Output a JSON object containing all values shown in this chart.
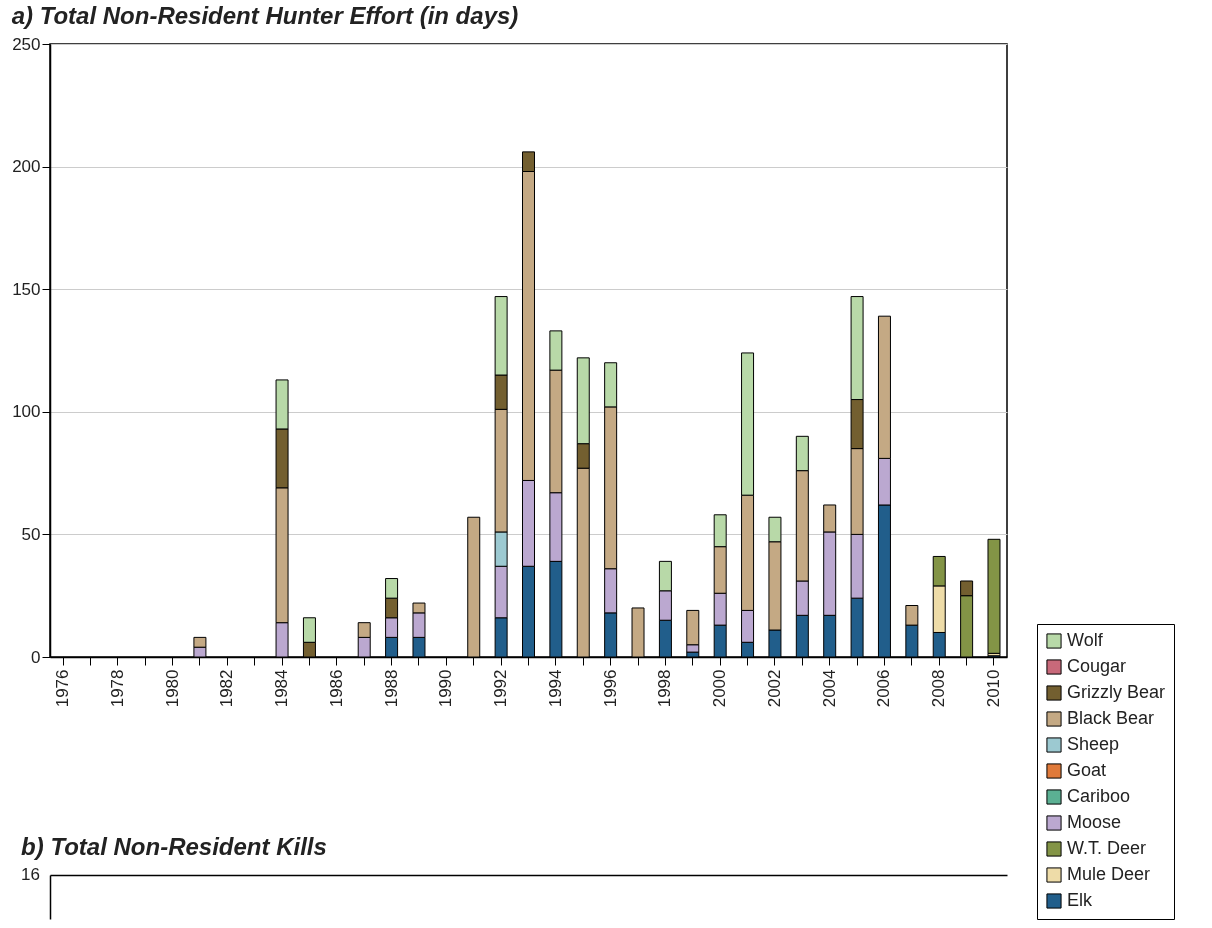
{
  "chart_data": [
    {
      "type": "bar",
      "title": "a) Total Non-Resident Hunter Effort (in days)",
      "stacked": true,
      "categories": [
        "1976",
        null,
        "1978",
        null,
        "1980",
        null,
        "1982",
        null,
        "1984",
        null,
        "1986",
        null,
        "1988",
        null,
        "1990",
        null,
        "1992",
        null,
        "1994",
        null,
        "1996",
        null,
        "1998",
        null,
        "2000",
        null,
        "2002",
        null,
        "2004",
        null,
        "2006",
        null,
        "2008",
        null,
        "2010"
      ],
      "series": [
        {
          "name": "Elk",
          "color": "#215e8b",
          "values": [
            null,
            null,
            null,
            null,
            null,
            null,
            null,
            null,
            null,
            null,
            null,
            null,
            8,
            8,
            null,
            null,
            16,
            37,
            39,
            null,
            18,
            null,
            15,
            2,
            13,
            6,
            11,
            17,
            17,
            24,
            62,
            13,
            10,
            null,
            0.5
          ]
        },
        {
          "name": "Mule Deer",
          "color": "#eedca8",
          "values": [
            null,
            null,
            null,
            null,
            null,
            null,
            null,
            null,
            null,
            null,
            null,
            null,
            null,
            null,
            null,
            null,
            null,
            null,
            null,
            null,
            null,
            null,
            null,
            null,
            null,
            null,
            null,
            null,
            null,
            null,
            null,
            null,
            19,
            null,
            1
          ]
        },
        {
          "name": "W.T. Deer",
          "color": "#839446",
          "values": [
            null,
            null,
            null,
            null,
            null,
            null,
            null,
            null,
            null,
            null,
            null,
            null,
            null,
            null,
            null,
            null,
            null,
            null,
            null,
            null,
            null,
            null,
            null,
            null,
            null,
            null,
            null,
            null,
            null,
            null,
            null,
            null,
            12,
            25,
            46.5
          ]
        },
        {
          "name": "Moose",
          "color": "#bba8d0",
          "values": [
            null,
            null,
            null,
            null,
            null,
            4,
            null,
            null,
            14,
            null,
            null,
            8,
            8,
            10,
            null,
            null,
            21,
            35,
            28,
            null,
            18,
            null,
            12,
            3,
            13,
            13,
            null,
            14,
            34,
            26,
            19,
            null,
            null,
            null,
            null
          ]
        },
        {
          "name": "Cariboo",
          "color": "#5bb093",
          "values": [
            null,
            null,
            null,
            null,
            null,
            null,
            null,
            null,
            null,
            null,
            null,
            null,
            null,
            null,
            null,
            null,
            null,
            null,
            null,
            null,
            null,
            null,
            null,
            null,
            null,
            null,
            null,
            null,
            null,
            null,
            null,
            null,
            null,
            null,
            null
          ]
        },
        {
          "name": "Goat",
          "color": "#e07a3a",
          "values": [
            null,
            null,
            null,
            null,
            null,
            null,
            null,
            null,
            null,
            null,
            null,
            null,
            null,
            null,
            null,
            null,
            null,
            null,
            null,
            null,
            null,
            null,
            null,
            null,
            null,
            null,
            null,
            null,
            null,
            null,
            null,
            null,
            null,
            null,
            null
          ]
        },
        {
          "name": "Sheep",
          "color": "#9cc9d1",
          "values": [
            null,
            null,
            null,
            null,
            null,
            null,
            null,
            null,
            null,
            null,
            null,
            null,
            null,
            null,
            null,
            null,
            14,
            null,
            null,
            null,
            null,
            null,
            null,
            null,
            null,
            null,
            null,
            null,
            null,
            null,
            null,
            null,
            null,
            null,
            null
          ]
        },
        {
          "name": "Black Bear",
          "color": "#c4a984",
          "values": [
            null,
            null,
            null,
            null,
            null,
            4,
            null,
            null,
            55,
            null,
            null,
            6,
            null,
            4,
            null,
            57,
            50,
            126,
            50,
            77,
            66,
            20,
            null,
            14,
            19,
            47,
            36,
            45,
            11,
            35,
            58,
            8,
            null,
            null,
            null
          ]
        },
        {
          "name": "Grizzly Bear",
          "color": "#735f30",
          "values": [
            null,
            null,
            null,
            null,
            null,
            null,
            null,
            null,
            24,
            6,
            null,
            null,
            8,
            null,
            null,
            null,
            14,
            8,
            null,
            10,
            null,
            null,
            null,
            null,
            null,
            null,
            null,
            null,
            null,
            20,
            null,
            null,
            null,
            6,
            null
          ]
        },
        {
          "name": "Cougar",
          "color": "#c8697a",
          "values": [
            null,
            null,
            null,
            null,
            null,
            null,
            null,
            null,
            null,
            null,
            null,
            null,
            null,
            null,
            null,
            null,
            null,
            null,
            null,
            null,
            null,
            null,
            null,
            null,
            null,
            null,
            null,
            null,
            null,
            null,
            null,
            null,
            null,
            null,
            null
          ]
        },
        {
          "name": "Wolf",
          "color": "#b8d9a8",
          "values": [
            null,
            null,
            null,
            null,
            null,
            null,
            null,
            null,
            20,
            10,
            null,
            null,
            8,
            null,
            null,
            null,
            32,
            null,
            16,
            35,
            18,
            null,
            12,
            null,
            13,
            58,
            10,
            14,
            null,
            42,
            null,
            null,
            null,
            null,
            null
          ]
        }
      ],
      "ylim": [
        0,
        250
      ],
      "yticks": [
        0,
        50,
        100,
        150,
        200,
        250
      ],
      "grid": "y",
      "legend": "bottom right"
    },
    {
      "type": "other",
      "title": "b) Total Non-Resident Kills",
      "annotations": [
        "16"
      ]
    }
  ]
}
